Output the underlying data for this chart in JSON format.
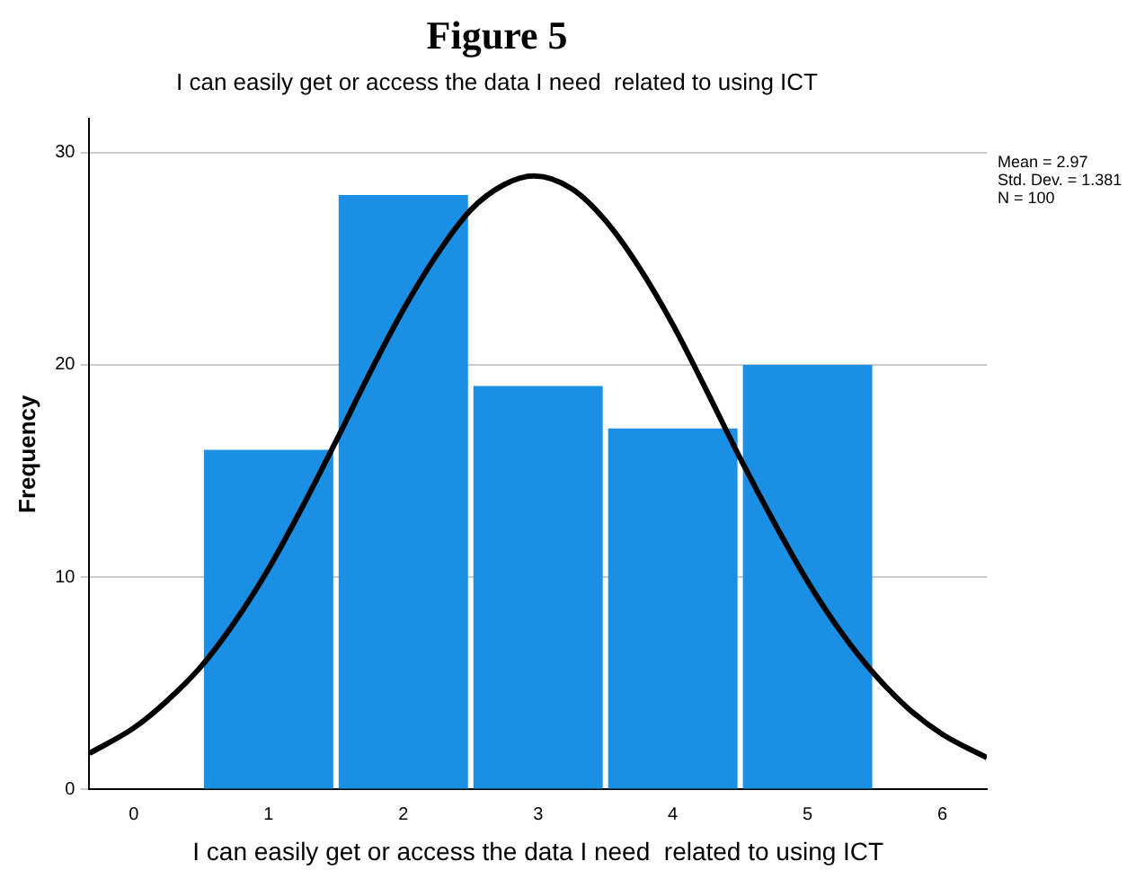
{
  "chart_data": {
    "type": "histogram",
    "title": "Figure 5",
    "subtitle": "I can easily get or access the data I need  related to using ICT",
    "xlabel": "I can easily get or access the data I need  related to using ICT",
    "ylabel": "Frequency",
    "bins": [
      0.5,
      1.5,
      2.5,
      3.5,
      4.5,
      5.5
    ],
    "values": [
      16,
      28,
      19,
      17,
      20
    ],
    "color": "#1a8fe3",
    "series": [
      {
        "type": "line",
        "color": "#000000",
        "x": [
          -0.33,
          0,
          0.25,
          0.5,
          0.75,
          1,
          1.25,
          1.5,
          1.75,
          2,
          2.25,
          2.5,
          2.75,
          2.97,
          3.25,
          3.5,
          3.75,
          4,
          4.25,
          4.5,
          4.75,
          5,
          5.25,
          5.5,
          5.75,
          6,
          6.33
        ],
        "values": [
          1.7,
          2.9,
          4.2,
          5.8,
          7.9,
          10.4,
          13.3,
          16.4,
          19.6,
          22.6,
          25.2,
          27.3,
          28.5,
          28.9,
          28.3,
          26.8,
          24.6,
          21.9,
          18.8,
          15.6,
          12.6,
          9.8,
          7.4,
          5.4,
          3.8,
          2.6,
          1.5
        ]
      }
    ],
    "xlim": [
      -0.33,
      6.33
    ],
    "xticks": [
      0,
      1,
      2,
      3,
      4,
      5,
      6
    ],
    "ylim": [
      0,
      31.6
    ],
    "yticks": [
      0,
      10,
      20,
      30
    ],
    "grid": "y",
    "legend": false,
    "marker": "none",
    "annotations": [
      "Mean = 2.97",
      "Std. Dev. = 1.381",
      "N = 100"
    ]
  }
}
